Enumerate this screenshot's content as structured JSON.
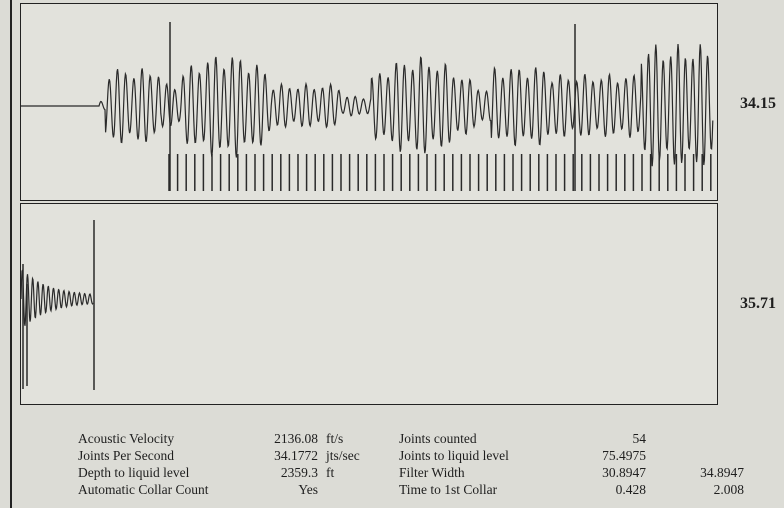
{
  "chart_data": [
    {
      "type": "line",
      "panel": "upper",
      "value_label": "34.15",
      "x": [
        0,
        1
      ],
      "series": [
        {
          "values": [
            0,
            0
          ]
        }
      ],
      "grid": false,
      "legend": "none"
    },
    {
      "type": "line",
      "panel": "lower",
      "value_label": "35.71",
      "x": [
        0,
        1
      ],
      "series": [
        {
          "values": [
            0,
            0
          ]
        }
      ],
      "grid": false,
      "legend": "none"
    }
  ],
  "stats": {
    "rows": [
      {
        "label": "Acoustic Velocity",
        "value": "2136.08",
        "unit": "ft/s",
        "label2": "Joints counted",
        "value2": "54",
        "value3": ""
      },
      {
        "label": "Joints Per Second",
        "value": "34.1772",
        "unit": "jts/sec",
        "label2": "Joints to liquid level",
        "value2": "75.4975",
        "value3": ""
      },
      {
        "label": "Depth to liquid level",
        "value": "2359.3",
        "unit": "ft",
        "label2": "Filter Width",
        "value2": "30.8947",
        "value3": "34.8947"
      },
      {
        "label": "Automatic Collar Count",
        "value": "Yes",
        "unit": "",
        "label2": "Time to 1st Collar",
        "value2": "0.428",
        "value3": "2.008"
      }
    ]
  }
}
